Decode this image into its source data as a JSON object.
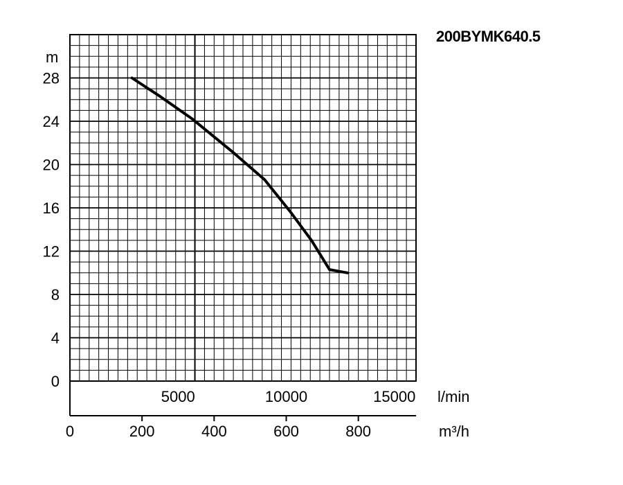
{
  "chart_data": {
    "type": "line",
    "title": "200BYMK640.5",
    "y_unit": "m",
    "y_ticks": [
      0,
      4,
      8,
      12,
      16,
      20,
      24,
      28
    ],
    "ylim": [
      0,
      32
    ],
    "x_unit_top": "l/min",
    "x_ticks_top": [
      5000,
      10000,
      15000
    ],
    "x_unit_bottom": "m³/h",
    "x_ticks_bottom": [
      0,
      200,
      400,
      600,
      800
    ],
    "xlim_m3h": [
      0,
      960
    ],
    "grid": true,
    "series": [
      {
        "x_m3h": [
          172,
          250,
          340,
          450,
          540,
          610,
          670,
          720,
          770
        ],
        "y_m": [
          28,
          26.3,
          24.2,
          21.2,
          18.6,
          15.7,
          13.0,
          10.3,
          10.0
        ]
      }
    ]
  }
}
